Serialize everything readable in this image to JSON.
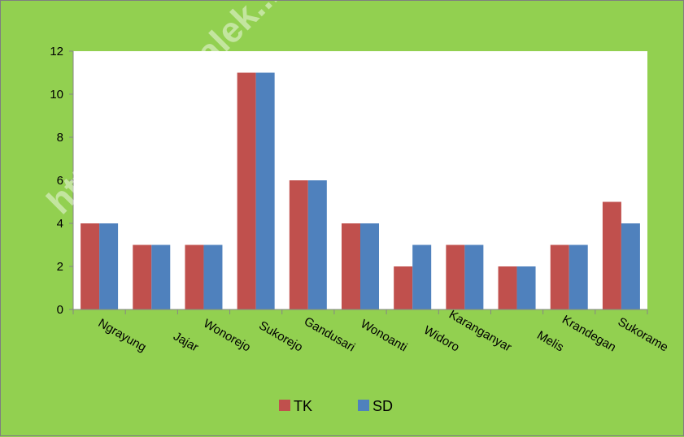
{
  "watermark": "http://trenggalek...",
  "chart_data": {
    "type": "bar",
    "categories": [
      "Ngrayung",
      "Jajar",
      "Wonorejo",
      "Sukorejo",
      "Gandusari",
      "Wonoanti",
      "Widoro",
      "Karanganyar",
      "Melis",
      "Krandegan",
      "Sukorame"
    ],
    "series": [
      {
        "name": "TK",
        "color": "#c0504d",
        "values": [
          4,
          3,
          3,
          11,
          6,
          4,
          2,
          3,
          2,
          3,
          5
        ]
      },
      {
        "name": "SD",
        "color": "#4f81bd",
        "values": [
          4,
          3,
          3,
          11,
          6,
          4,
          3,
          3,
          2,
          3,
          4
        ]
      }
    ],
    "ylim": [
      0,
      12
    ],
    "yticks": [
      "0",
      "2",
      "4",
      "6",
      "8",
      "10",
      "12"
    ],
    "grid": false,
    "legend_position": "bottom",
    "title": "",
    "xlabel": "",
    "ylabel": ""
  }
}
